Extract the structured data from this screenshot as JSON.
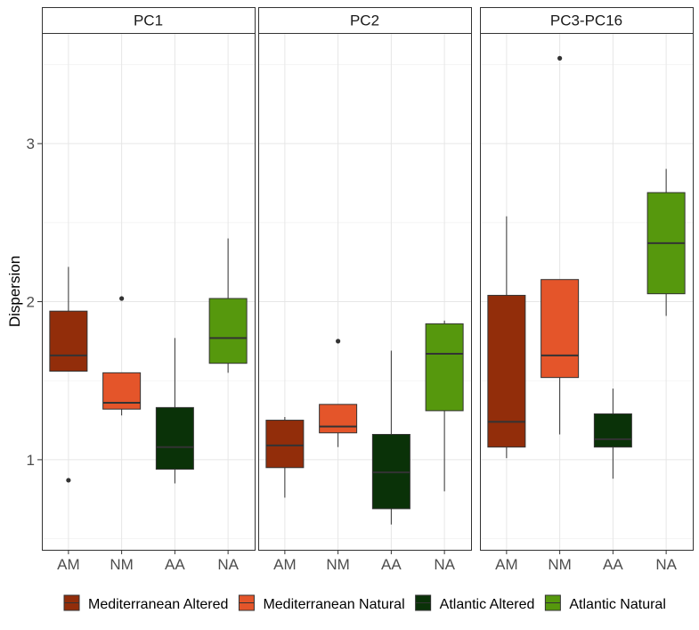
{
  "chart_data": {
    "type": "boxplot",
    "ylabel": "Dispersion",
    "xlabel": "",
    "ylim": [
      0.43,
      3.7
    ],
    "y_ticks": [
      1,
      2,
      3
    ],
    "grid": true,
    "legend_position": "bottom",
    "categories": [
      "AM",
      "NM",
      "AA",
      "NA"
    ],
    "legend": [
      {
        "label": "Mediterranean Altered",
        "color": "#922D0A"
      },
      {
        "label": "Mediterranean Natural",
        "color": "#E4552A"
      },
      {
        "label": "Atlantic Altered",
        "color": "#0A3208"
      },
      {
        "label": "Atlantic Natural",
        "color": "#56980D"
      }
    ],
    "panels": [
      {
        "title": "PC1",
        "boxes": [
          {
            "category": "AM",
            "min": 1.56,
            "q1": 1.56,
            "median": 1.66,
            "q3": 1.94,
            "max": 2.22,
            "outliers": [
              0.87
            ]
          },
          {
            "category": "NM",
            "min": 1.28,
            "q1": 1.32,
            "median": 1.36,
            "q3": 1.55,
            "max": 1.55,
            "outliers": [
              2.02
            ]
          },
          {
            "category": "AA",
            "min": 0.85,
            "q1": 0.94,
            "median": 1.08,
            "q3": 1.33,
            "max": 1.77,
            "outliers": []
          },
          {
            "category": "NA",
            "min": 1.55,
            "q1": 1.61,
            "median": 1.77,
            "q3": 2.02,
            "max": 2.4,
            "outliers": []
          }
        ]
      },
      {
        "title": "PC2",
        "boxes": [
          {
            "category": "AM",
            "min": 0.76,
            "q1": 0.95,
            "median": 1.09,
            "q3": 1.25,
            "max": 1.27,
            "outliers": []
          },
          {
            "category": "NM",
            "min": 1.08,
            "q1": 1.17,
            "median": 1.21,
            "q3": 1.35,
            "max": 1.35,
            "outliers": [
              1.75
            ]
          },
          {
            "category": "AA",
            "min": 0.59,
            "q1": 0.69,
            "median": 0.92,
            "q3": 1.16,
            "max": 1.69,
            "outliers": []
          },
          {
            "category": "NA",
            "min": 0.8,
            "q1": 1.31,
            "median": 1.67,
            "q3": 1.86,
            "max": 1.88,
            "outliers": []
          }
        ]
      },
      {
        "title": "PC3-PC16",
        "boxes": [
          {
            "category": "AM",
            "min": 1.01,
            "q1": 1.08,
            "median": 1.24,
            "q3": 2.04,
            "max": 2.54,
            "outliers": []
          },
          {
            "category": "NM",
            "min": 1.16,
            "q1": 1.52,
            "median": 1.66,
            "q3": 2.14,
            "max": 2.14,
            "outliers": [
              3.54
            ]
          },
          {
            "category": "AA",
            "min": 0.88,
            "q1": 1.08,
            "median": 1.13,
            "q3": 1.29,
            "max": 1.45,
            "outliers": []
          },
          {
            "category": "NA",
            "min": 1.91,
            "q1": 2.05,
            "median": 2.37,
            "q3": 2.69,
            "max": 2.84,
            "outliers": []
          }
        ]
      }
    ]
  }
}
